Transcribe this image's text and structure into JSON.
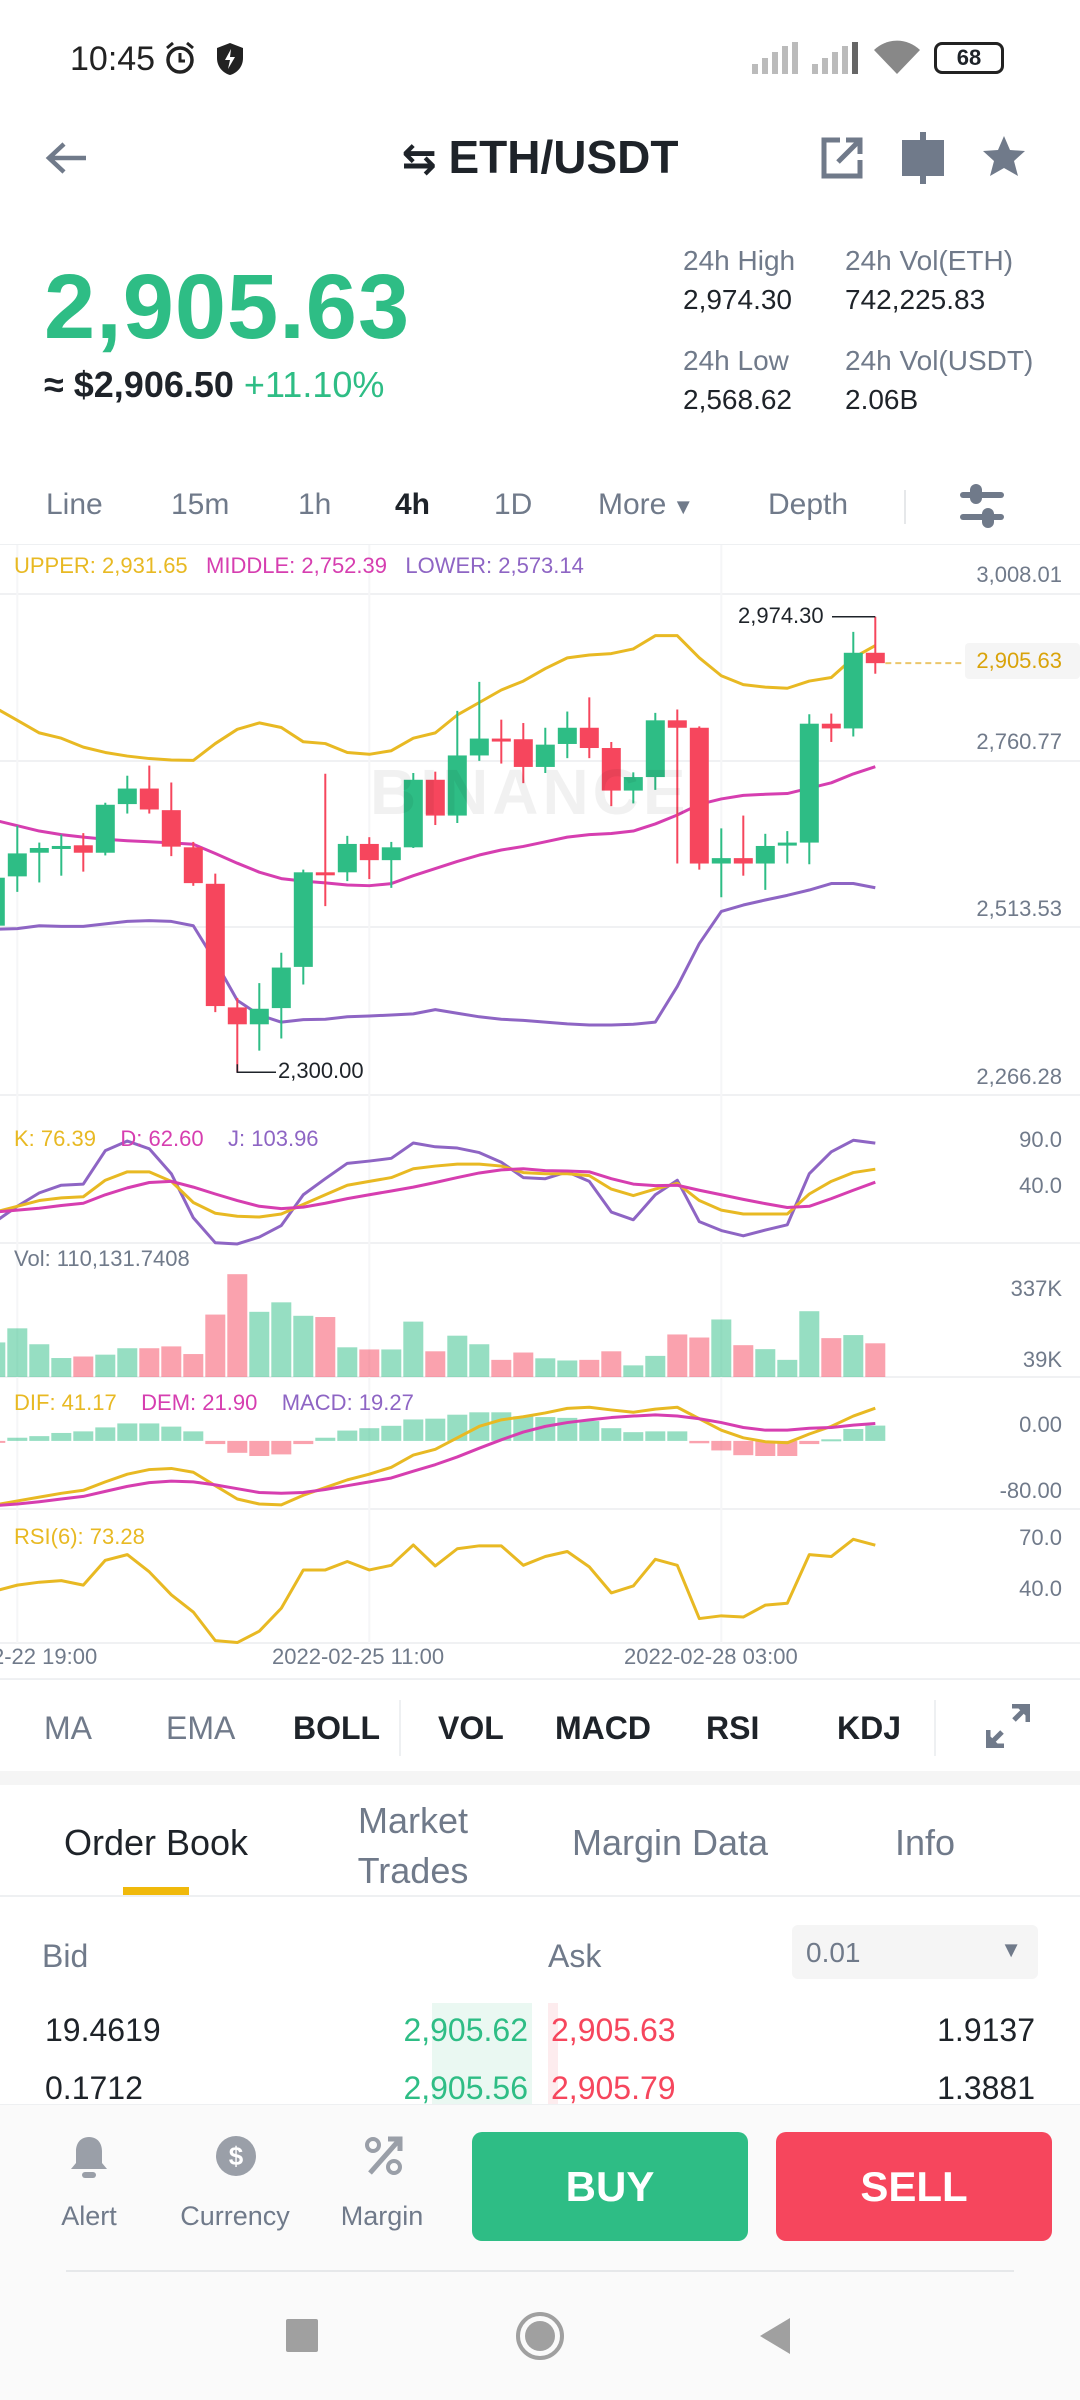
{
  "status_bar": {
    "time": "10:45",
    "battery": "68"
  },
  "header": {
    "pair": "ETH/USDT",
    "icons": [
      "back-arrow-icon",
      "swap-icon",
      "share-icon",
      "compare-icon",
      "star-icon"
    ]
  },
  "ticker": {
    "last_price": "2,905.63",
    "fiat_price": "≈ $2,906.50",
    "change": "+11.10%",
    "high_label": "24h High",
    "high": "2,974.30",
    "vol_base_label": "24h Vol(ETH)",
    "vol_base": "742,225.83",
    "low_label": "24h Low",
    "low": "2,568.62",
    "vol_quote_label": "24h Vol(USDT)",
    "vol_quote": "2.06B"
  },
  "timeframes": {
    "items": [
      "Line",
      "15m",
      "1h",
      "4h",
      "1D",
      "More",
      "Depth"
    ],
    "active": "4h"
  },
  "colors": {
    "up": "#2EBD85",
    "down": "#F6465D",
    "upper": "#E8B923",
    "middle": "#D63EB0",
    "lower": "#8E65C4",
    "accent": "#F0B90B"
  },
  "watermark": "BINANCE",
  "chart_data": {
    "type": "candlestick",
    "price_axis": [
      "3,008.01",
      "2,760.77",
      "2,513.53",
      "2,266.28"
    ],
    "price_range": [
      2266.28,
      3008.01
    ],
    "last_price_tag": "2,905.63",
    "high_marker": "2,974.30",
    "low_marker": "2,300.00",
    "x_ticks": [
      "2-22 19:00",
      "2022-02-25 11:00",
      "2022-02-28 03:00"
    ],
    "boll_legend": {
      "upper": "UPPER: 2,931.65",
      "middle": "MIDDLE: 2,752.39",
      "lower": "LOWER: 2,573.14"
    },
    "candles": [
      [
        2517,
        2590,
        2510,
        2588
      ],
      [
        2590,
        2665,
        2567,
        2624
      ],
      [
        2625,
        2640,
        2581,
        2632
      ],
      [
        2633,
        2652,
        2591,
        2635
      ],
      [
        2636,
        2654,
        2597,
        2625
      ],
      [
        2625,
        2699,
        2621,
        2696
      ],
      [
        2697,
        2739,
        2683,
        2720
      ],
      [
        2720,
        2754,
        2683,
        2689
      ],
      [
        2688,
        2729,
        2620,
        2634
      ],
      [
        2633,
        2641,
        2576,
        2580
      ],
      [
        2579,
        2594,
        2389,
        2398
      ],
      [
        2396,
        2410,
        2300,
        2371
      ],
      [
        2371,
        2432,
        2332,
        2394
      ],
      [
        2395,
        2477,
        2350,
        2455
      ],
      [
        2456,
        2600,
        2430,
        2596
      ],
      [
        2596,
        2742,
        2546,
        2593
      ],
      [
        2596,
        2650,
        2583,
        2638
      ],
      [
        2638,
        2648,
        2586,
        2614
      ],
      [
        2614,
        2641,
        2573,
        2633
      ],
      [
        2633,
        2743,
        2632,
        2733
      ],
      [
        2733,
        2745,
        2666,
        2680
      ],
      [
        2680,
        2835,
        2669,
        2769
      ],
      [
        2769,
        2878,
        2761,
        2794
      ],
      [
        2794,
        2822,
        2757,
        2791
      ],
      [
        2793,
        2817,
        2728,
        2752
      ],
      [
        2752,
        2810,
        2743,
        2785
      ],
      [
        2786,
        2834,
        2765,
        2810
      ],
      [
        2810,
        2855,
        2765,
        2780
      ],
      [
        2780,
        2789,
        2694,
        2717
      ],
      [
        2717,
        2744,
        2698,
        2737
      ],
      [
        2737,
        2832,
        2718,
        2821
      ],
      [
        2821,
        2837,
        2609,
        2810
      ],
      [
        2810,
        2812,
        2600,
        2609
      ],
      [
        2609,
        2661,
        2559,
        2617
      ],
      [
        2617,
        2680,
        2591,
        2609
      ],
      [
        2609,
        2653,
        2570,
        2635
      ],
      [
        2636,
        2657,
        2609,
        2640
      ],
      [
        2640,
        2830,
        2608,
        2816
      ],
      [
        2816,
        2831,
        2789,
        2809
      ],
      [
        2809,
        2952,
        2797,
        2921
      ],
      [
        2921,
        2974.3,
        2890,
        2905.63
      ]
    ],
    "boll_upper": [
      2839.5,
      2821,
      2802.4,
      2794.5,
      2781.3,
      2773.4,
      2768.1,
      2764.4,
      2762.3,
      2761.7,
      2786.6,
      2807.7,
      2817.2,
      2810.4,
      2789.2,
      2786.6,
      2773.4,
      2770.7,
      2776,
      2794.5,
      2802.4,
      2828.9,
      2847.4,
      2865.9,
      2879.1,
      2897.6,
      2913.5,
      2917.7,
      2919.8,
      2926.7,
      2946.3,
      2946.3,
      2913.5,
      2887,
      2873.8,
      2870.1,
      2868.5,
      2879.1,
      2884.4,
      2913.5,
      2931.65
    ],
    "boll_middle": [
      2672.9,
      2665,
      2657.1,
      2651.8,
      2648.1,
      2644.9,
      2642.8,
      2641.2,
      2639.6,
      2637.5,
      2623.8,
      2609.5,
      2596.2,
      2586.7,
      2583,
      2580.4,
      2577.2,
      2576.2,
      2579.3,
      2591,
      2601.5,
      2612.1,
      2621.6,
      2629,
      2634.3,
      2641.2,
      2648.1,
      2651.8,
      2653.4,
      2657.1,
      2667.6,
      2680.8,
      2696.7,
      2704.6,
      2709.9,
      2711.5,
      2712.6,
      2720.5,
      2728.5,
      2741.7,
      2752.39
    ],
    "boll_lower": [
      2511.7,
      2512.7,
      2516.9,
      2515.9,
      2515.9,
      2519.6,
      2523.3,
      2524.4,
      2523.3,
      2516.9,
      2464.1,
      2406.4,
      2384.8,
      2374.2,
      2377.9,
      2378.4,
      2382.1,
      2383.2,
      2384.8,
      2386.4,
      2392.7,
      2387.4,
      2382.1,
      2378.4,
      2376.8,
      2374.2,
      2371.6,
      2370,
      2370,
      2371,
      2374.2,
      2427,
      2490.5,
      2538.1,
      2547.6,
      2555,
      2561.9,
      2569.8,
      2579.4,
      2579.4,
      2573.14
    ],
    "kdj": {
      "legend": {
        "k": "K: 76.39",
        "d": "D: 62.60",
        "j": "J: 103.96"
      },
      "axis": [
        "90.0",
        "40.0"
      ],
      "k": [
        31.0,
        37.1,
        43.2,
        46.0,
        47.2,
        64.7,
        73.6,
        73.6,
        63.5,
        41.1,
        29.7,
        26.5,
        25.7,
        28.9,
        39.1,
        49.3,
        59.4,
        63.5,
        67.5,
        76.9,
        79.7,
        81.8,
        81.8,
        79.7,
        72.8,
        71.6,
        71.6,
        69.6,
        55.3,
        48.4,
        55.3,
        61.4,
        43.2,
        33.0,
        28.9,
        28.9,
        28.9,
        50.1,
        63.5,
        72.8,
        76.39
      ],
      "d": [
        31.0,
        33.0,
        35.0,
        37.9,
        40.3,
        49.3,
        56.6,
        62.3,
        63.5,
        57.4,
        50.1,
        43.2,
        37.1,
        34.6,
        36.2,
        40.3,
        45.2,
        49.3,
        53.3,
        57.4,
        62.3,
        67.5,
        72.4,
        75.7,
        76.9,
        74.9,
        74.5,
        73.6,
        66.3,
        60.6,
        59.0,
        59.4,
        54.1,
        49.3,
        44.4,
        39.9,
        35.8,
        37.1,
        45.2,
        54.1,
        62.6
      ],
      "j": [
        20.8,
        37.1,
        51.3,
        59.4,
        60.6,
        96.0,
        106.2,
        98.0,
        71.6,
        24.9,
        -1.6,
        -2.8,
        4.5,
        16.7,
        49.3,
        66.3,
        82.6,
        85.0,
        87.9,
        104.1,
        100.1,
        98.8,
        94.0,
        83.8,
        67.5,
        66.3,
        73.6,
        63.5,
        31.0,
        22.8,
        49.3,
        64.7,
        20.8,
        11.4,
        5.8,
        11.9,
        17.5,
        71.6,
        94.8,
        107.0,
        103.96
      ]
    },
    "volume": {
      "legend": "Vol: 110,131.7408",
      "axis": [
        "337K",
        "39K"
      ],
      "values_k": [
        113,
        159,
        107,
        62,
        67,
        73,
        94,
        94,
        100,
        75,
        204,
        336,
        213,
        244,
        200,
        196,
        97,
        90,
        90,
        181,
        84,
        135,
        107,
        56,
        80,
        61,
        54,
        56,
        84,
        38,
        69,
        139,
        129,
        188,
        104,
        91,
        56,
        215,
        127,
        137,
        110.13
      ]
    },
    "macd": {
      "legend": {
        "dif": "DIF: 41.17",
        "dem": "DEM: 21.90",
        "macd": "MACD: 19.27"
      },
      "axis": [
        "0.00",
        "-80.00"
      ],
      "hist": [
        -2,
        4,
        6,
        10,
        12,
        17,
        22,
        22,
        18,
        12,
        -4,
        -15,
        -19,
        -17,
        -4,
        4,
        13,
        16,
        19,
        27,
        28,
        33,
        36,
        36,
        31,
        30,
        29,
        25,
        16,
        11,
        12,
        12,
        -3,
        -12,
        -18,
        -19,
        -19,
        -4,
        2,
        15,
        19.27
      ],
      "dif": [
        -80.5,
        -75.6,
        -70.8,
        -66,
        -62.2,
        -51.6,
        -41.9,
        -36.1,
        -34.7,
        -39.5,
        -56.4,
        -73.2,
        -79.5,
        -80.5,
        -68.4,
        -58.8,
        -49.1,
        -41.9,
        -33.2,
        -17.8,
        -10.6,
        3.9,
        18.3,
        26.5,
        30.4,
        35.2,
        41,
        42.4,
        39,
        36.1,
        40,
        42.4,
        27.9,
        13.5,
        3.9,
        -1,
        -2.4,
        8.7,
        18.3,
        31.3,
        41.17
      ],
      "dem": [
        -81.4,
        -79.5,
        -76.6,
        -73.2,
        -69.9,
        -63.6,
        -57.3,
        -52.5,
        -50.6,
        -51.6,
        -55.4,
        -60.2,
        -65,
        -66,
        -65,
        -61.2,
        -56.4,
        -51.6,
        -46.7,
        -38.1,
        -29.9,
        -20.2,
        -9.2,
        1.4,
        11.1,
        18.3,
        23.1,
        26.5,
        29.4,
        31.3,
        32.8,
        31.3,
        27.9,
        23.1,
        16.9,
        13.5,
        13.5,
        15.9,
        16.9,
        19.8,
        21.9
      ]
    },
    "rsi": {
      "legend": "RSI(6): 73.28",
      "axis": [
        "70.0",
        "40.0"
      ],
      "values": [
        46.7,
        50.1,
        51.8,
        52.7,
        50.1,
        64.5,
        67.8,
        57.8,
        44.5,
        34.5,
        17.9,
        16.8,
        23.4,
        36.7,
        58.9,
        58.9,
        63.8,
        58.9,
        61.6,
        73.4,
        61.2,
        71.2,
        72.9,
        72.9,
        61.6,
        66.7,
        69.6,
        60.7,
        45.6,
        49.6,
        65.1,
        61.6,
        30.7,
        32.3,
        31.6,
        38.5,
        39.6,
        67.8,
        66.7,
        76.7,
        73.28
      ]
    }
  },
  "indicators": {
    "items": [
      "MA",
      "EMA",
      "BOLL",
      "VOL",
      "MACD",
      "RSI",
      "KDJ"
    ],
    "active": [
      "BOLL",
      "VOL",
      "MACD",
      "RSI",
      "KDJ"
    ]
  },
  "tabs": {
    "items": [
      "Order Book",
      "Market Trades",
      "Margin Data",
      "Info"
    ],
    "market_l1": "Market",
    "market_l2": "Trades",
    "active": "Order Book"
  },
  "order_book": {
    "bid_label": "Bid",
    "ask_label": "Ask",
    "precision": "0.01",
    "rows": [
      {
        "bid_qty": "19.4619",
        "bid_price": "2,905.62",
        "ask_price": "2,905.63",
        "ask_qty": "1.9137"
      },
      {
        "bid_qty": "0.1712",
        "bid_price": "2,905.56",
        "ask_price": "2,905.79",
        "ask_qty": "1.3881"
      }
    ]
  },
  "bottom_bar": {
    "alert": "Alert",
    "currency": "Currency",
    "margin": "Margin",
    "buy": "BUY",
    "sell": "SELL"
  }
}
